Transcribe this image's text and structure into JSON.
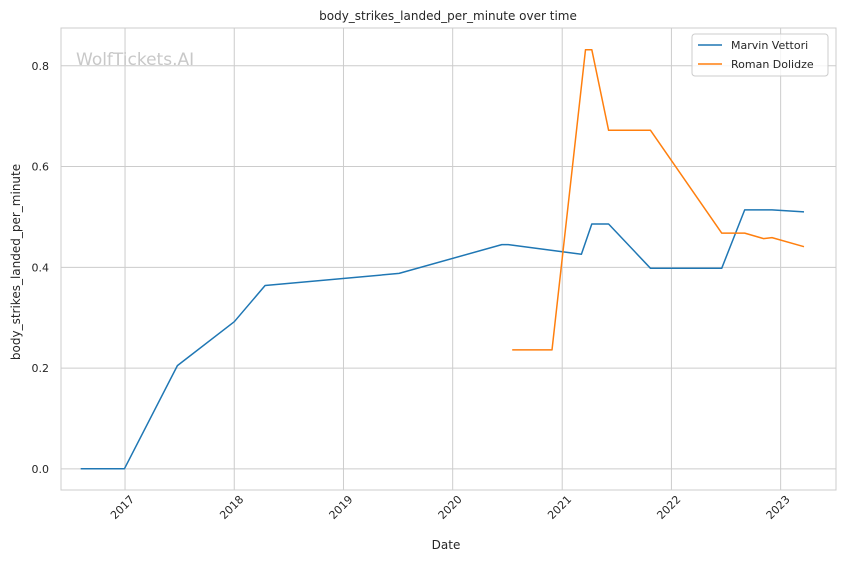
{
  "chart_data": {
    "type": "line",
    "title": "body_strikes_landed_per_minute over time",
    "xlabel": "Date",
    "ylabel": "body_strikes_landed_per_minute",
    "watermark": "WolfTickets.AI",
    "x_ticks": [
      "2017",
      "2018",
      "2019",
      "2020",
      "2021",
      "2022",
      "2023"
    ],
    "y_ticks": [
      "0.0",
      "0.2",
      "0.4",
      "0.6",
      "0.8"
    ],
    "xlim": [
      "2016-06-01",
      "2023-07-05"
    ],
    "ylim": [
      -0.042,
      0.875
    ],
    "grid": true,
    "legend_position": "top-right",
    "series": [
      {
        "name": "Marvin Vettori",
        "color": "#1f77b4",
        "x": [
          "2016-08-06",
          "2016-12-30",
          "2017-06-25",
          "2018-01-01",
          "2018-04-14",
          "2019-07-06",
          "2020-06-13",
          "2020-07-05",
          "2021-03-06",
          "2021-04-10",
          "2021-06-05",
          "2021-10-23",
          "2022-06-18",
          "2022-09-03",
          "2022-12-03",
          "2023-03-20"
        ],
        "values": [
          0.0,
          0.0,
          0.205,
          0.292,
          0.364,
          0.388,
          0.445,
          0.445,
          0.426,
          0.486,
          0.486,
          0.398,
          0.398,
          0.514,
          0.514,
          0.51
        ]
      },
      {
        "name": "Roman Dolidze",
        "color": "#ff7f0e",
        "x": [
          "2020-07-18",
          "2020-11-28",
          "2021-03-20",
          "2021-04-10",
          "2021-06-05",
          "2021-10-23",
          "2022-06-18",
          "2022-09-03",
          "2022-11-05",
          "2022-12-03",
          "2023-03-20"
        ],
        "values": [
          0.236,
          0.236,
          0.832,
          0.832,
          0.672,
          0.672,
          0.468,
          0.468,
          0.457,
          0.459,
          0.441
        ]
      }
    ]
  }
}
